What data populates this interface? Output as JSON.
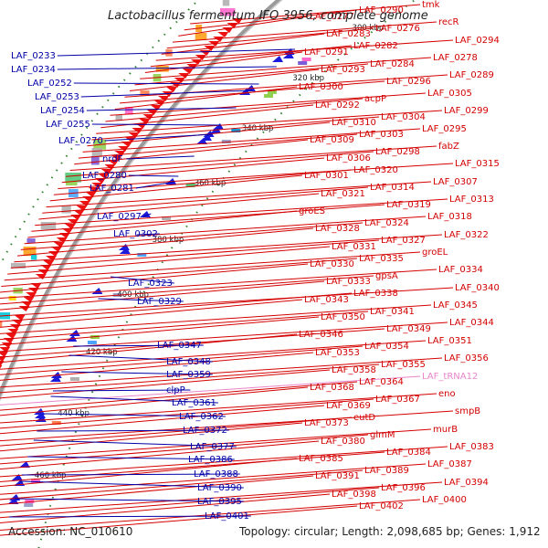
{
  "title": "Lactobacillus fermentum IFO 3956, complete genome",
  "accession_text": "Accession: NC_010610",
  "summary_text": "Topology: circular; Length: 2,098,685 bp; Genes: 1,912",
  "colors": {
    "right_labels": "#d40000",
    "left_labels": "#0000a8",
    "trna_label": "#e985c8",
    "kbp_ticks": "#2f7f2f",
    "backbone": "#8a8a8a",
    "arrows_red": "#ee1111",
    "arrows_blue": "#1a1adc"
  },
  "kbp_ticks": [
    "300 kbp",
    "320 kbp",
    "340 kbp",
    "360 kbp",
    "380 kbp",
    "400 kbp",
    "420 kbp",
    "440 kbp",
    "460 kbp"
  ],
  "left_labels": [
    "LAF_0233",
    "LAF_0234",
    "LAF_0252",
    "LAF_0253",
    "LAF_0254",
    "LAF_0255",
    "LAF_0270",
    "nrdF",
    "LAF_0280",
    "LAF_0281",
    "LAF_0297",
    "LAF_0302",
    "LAF_0323",
    "LAF_0329",
    "LAF_0347",
    "LAF_0348",
    "LAF_0359",
    "clpP",
    "LAF_0361",
    "LAF_0362",
    "LAF_0372",
    "LAF_0377",
    "LAF_0386",
    "LAF_0388",
    "LAF_0390",
    "LAF_0395",
    "LAF_0401"
  ],
  "right_labels": [
    "tmk",
    "LAF_0290",
    "LAF_0277",
    "recR",
    "LAF_0276",
    "LAF_0283",
    "LAF_0294",
    "LAF_0282",
    "LAF_0291",
    "LAF_0278",
    "LAF_0284",
    "LAF_0293",
    "LAF_0289",
    "LAF_0296",
    "LAF_0300",
    "LAF_0305",
    "acpP",
    "LAF_0292",
    "LAF_0299",
    "LAF_0304",
    "LAF_0310",
    "LAF_0295",
    "LAF_0303",
    "LAF_0309",
    "fabZ",
    "LAF_0298",
    "LAF_0306",
    "LAF_0315",
    "LAF_0320",
    "LAF_0301",
    "LAF_0307",
    "LAF_0314",
    "LAF_0321",
    "LAF_0313",
    "LAF_0319",
    "groES",
    "LAF_0318",
    "LAF_0324",
    "LAF_0328",
    "LAF_0322",
    "LAF_0327",
    "LAF_0331",
    "groEL",
    "LAF_0335",
    "LAF_0330",
    "LAF_0334",
    "gpsA",
    "LAF_0333",
    "LAF_0340",
    "LAF_0338",
    "LAF_0343",
    "LAF_0345",
    "LAF_0341",
    "LAF_0350",
    "LAF_0344",
    "LAF_0349",
    "LAF_0346",
    "LAF_0351",
    "LAF_0354",
    "LAF_0353",
    "LAF_0356",
    "LAF_0355",
    "LAF_0358",
    "LAF_tRNA12",
    "LAF_0364",
    "LAF_0368",
    "eno",
    "LAF_0367",
    "LAF_0369",
    "smpB",
    "eutD",
    "LAF_0373",
    "murB",
    "glmM",
    "LAF_0380",
    "LAF_0383",
    "LAF_0384",
    "LAF_0385",
    "LAF_0387",
    "LAF_0389",
    "LAF_0391",
    "LAF_0394",
    "LAF_0396",
    "LAF_0398",
    "LAF_0400",
    "LAF_0402"
  ]
}
